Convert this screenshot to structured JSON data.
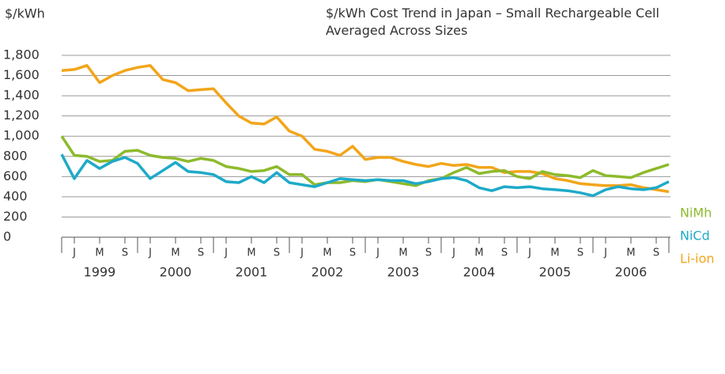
{
  "chart_data": {
    "type": "line",
    "title": "$/kWh Cost Trend in Japan – Small Rechargeable Cell Averaged Across Sizes",
    "y_label": "$/kWh",
    "categories": [
      null,
      "J",
      null,
      "M",
      null,
      "S",
      null,
      "J",
      null,
      "M",
      null,
      "S",
      null,
      "J",
      null,
      "M",
      null,
      "S",
      null,
      "J",
      null,
      "M",
      null,
      "S",
      null,
      "J",
      null,
      "M",
      null,
      "S",
      null,
      "J",
      null,
      "M",
      null,
      "S",
      null,
      "J",
      null,
      "M",
      null,
      "S",
      null,
      "J",
      null,
      "M",
      null,
      "S",
      null
    ],
    "years": [
      "1999",
      "2000",
      "2001",
      "2002",
      "2003",
      "2004",
      "2005",
      "2006"
    ],
    "ylim": [
      0,
      1800
    ],
    "yticks": [
      0,
      200,
      400,
      600,
      800,
      {
        "value": 1000,
        "label": "1,000"
      },
      {
        "value": 1200,
        "label": "1,200"
      },
      {
        "value": 1400,
        "label": "1,400"
      },
      {
        "value": 1600,
        "label": "1,600"
      },
      {
        "value": 1800,
        "label": "1,800"
      }
    ],
    "grid": true,
    "series": [
      {
        "name": "Li-ion",
        "color": "#f2a51a",
        "values": [
          1650,
          1660,
          1700,
          1530,
          1600,
          1650,
          1680,
          1700,
          1560,
          1530,
          1450,
          1460,
          1470,
          1330,
          1200,
          1130,
          1120,
          1190,
          1050,
          1000,
          870,
          850,
          810,
          900,
          770,
          790,
          790,
          750,
          720,
          700,
          730,
          710,
          720,
          690,
          690,
          640,
          650,
          650,
          630,
          580,
          560,
          530,
          520,
          510,
          510,
          520,
          490,
          470,
          450
        ]
      },
      {
        "name": "NiMh",
        "color": "#8dba2c",
        "values": [
          1000,
          810,
          800,
          750,
          760,
          850,
          860,
          810,
          790,
          780,
          750,
          780,
          760,
          700,
          680,
          650,
          660,
          700,
          620,
          620,
          520,
          540,
          540,
          560,
          550,
          570,
          550,
          530,
          510,
          560,
          580,
          640,
          690,
          630,
          650,
          660,
          600,
          580,
          650,
          620,
          610,
          590,
          660,
          610,
          600,
          590,
          640,
          680,
          720
        ]
      },
      {
        "name": "NiCd",
        "color": "#1eaac8",
        "values": [
          820,
          580,
          760,
          680,
          750,
          790,
          730,
          580,
          660,
          740,
          650,
          640,
          620,
          550,
          540,
          600,
          540,
          640,
          540,
          520,
          500,
          540,
          580,
          570,
          560,
          570,
          560,
          560,
          530,
          550,
          580,
          590,
          560,
          490,
          460,
          500,
          490,
          500,
          480,
          470,
          460,
          440,
          410,
          470,
          500,
          480,
          470,
          490,
          550
        ]
      }
    ]
  }
}
